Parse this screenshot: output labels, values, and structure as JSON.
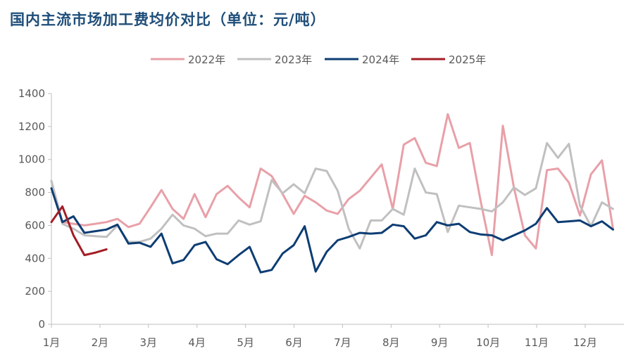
{
  "title": "国内主流市场加工费均价对比（单位：元/吨）",
  "chart_data": {
    "type": "line",
    "title": "国内主流市场加工费均价对比（单位：元/吨）",
    "xlabel": "",
    "ylabel": "",
    "ylim": [
      0,
      1400
    ],
    "yticks": [
      "0",
      "200",
      "400",
      "600",
      "800",
      "1000",
      "1200",
      "1400"
    ],
    "xticks": [
      "1月",
      "2月",
      "3月",
      "4月",
      "5月",
      "6月",
      "7月",
      "8月",
      "9月",
      "10月",
      "11月",
      "12月"
    ],
    "x_unit": "week",
    "x_range": [
      1,
      53
    ],
    "legend_position": "top",
    "grid": false,
    "series": [
      {
        "name": "2022年",
        "color": "#e8a0a8",
        "values": [
          870,
          620,
          610,
          600,
          610,
          620,
          640,
          590,
          610,
          710,
          815,
          700,
          640,
          790,
          650,
          790,
          840,
          770,
          710,
          945,
          900,
          790,
          670,
          780,
          740,
          690,
          670,
          760,
          810,
          890,
          970,
          700,
          1090,
          1130,
          980,
          960,
          1275,
          1070,
          1100,
          740,
          420,
          1205,
          830,
          540,
          460,
          935,
          945,
          860,
          660,
          910,
          995,
          580
        ]
      },
      {
        "name": "2023年",
        "color": "#c0c0c0",
        "values": [
          870,
          610,
          580,
          540,
          535,
          530,
          600,
          500,
          500,
          520,
          580,
          665,
          600,
          580,
          535,
          550,
          550,
          630,
          605,
          625,
          875,
          795,
          850,
          795,
          945,
          930,
          810,
          580,
          460,
          630,
          630,
          700,
          665,
          945,
          800,
          790,
          560,
          720,
          710,
          700,
          685,
          740,
          830,
          785,
          825,
          1100,
          1010,
          1095,
          720,
          595,
          740,
          700
        ]
      },
      {
        "name": "2024年",
        "color": "#0d3d73",
        "values": [
          825,
          620,
          655,
          555,
          565,
          575,
          605,
          490,
          495,
          470,
          550,
          370,
          390,
          480,
          500,
          395,
          365,
          420,
          470,
          315,
          330,
          430,
          480,
          595,
          320,
          440,
          510,
          530,
          555,
          550,
          555,
          605,
          595,
          520,
          540,
          620,
          600,
          610,
          560,
          545,
          540,
          510,
          540,
          570,
          610,
          705,
          620,
          625,
          630,
          595,
          625,
          575
        ]
      },
      {
        "name": "2025年",
        "color": "#a31d26",
        "values": [
          620,
          715,
          540,
          420,
          435,
          455
        ]
      }
    ]
  }
}
